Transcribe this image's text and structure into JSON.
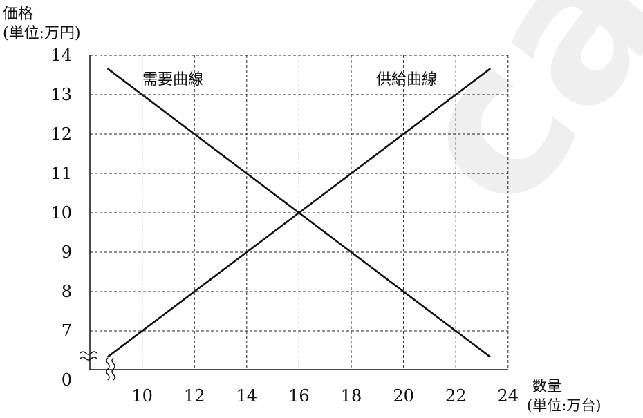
{
  "chart_data": {
    "type": "line",
    "ylabel_line1": "価格",
    "ylabel_line2": "(単位:万円)",
    "xlabel_line1": "数量",
    "xlabel_line2": "(単位:万台)",
    "x_ticks": [
      10,
      12,
      14,
      16,
      18,
      20,
      22,
      24
    ],
    "y_ticks": [
      7,
      8,
      9,
      10,
      11,
      12,
      13,
      14
    ],
    "y_zero_label": "0",
    "xlim": [
      8,
      24
    ],
    "ylim": [
      6.5,
      14
    ],
    "grid": true,
    "series": [
      {
        "name": "需要曲線",
        "x": [
          8.7,
          16,
          23.3
        ],
        "y": [
          13.65,
          10,
          6.35
        ]
      },
      {
        "name": "供給曲線",
        "x": [
          8.7,
          16,
          23.3
        ],
        "y": [
          6.35,
          10,
          13.65
        ]
      }
    ]
  },
  "watermark": "caiyo"
}
